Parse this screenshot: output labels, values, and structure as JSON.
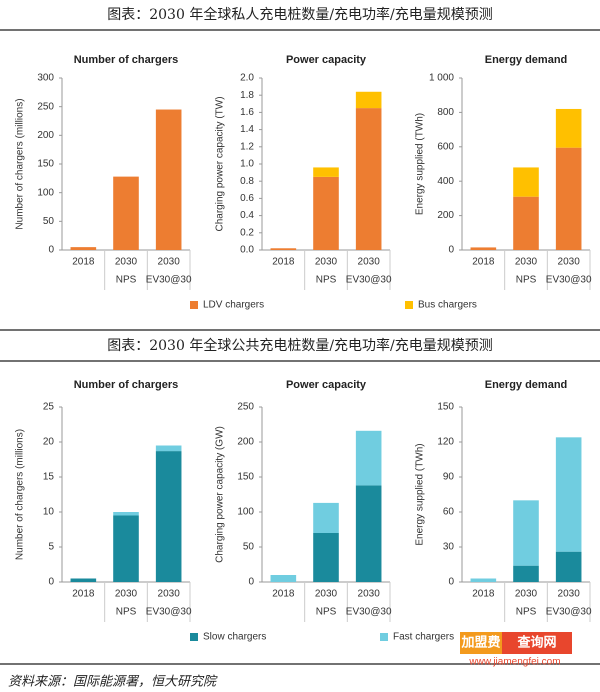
{
  "panels": [
    {
      "title": "图表：2030 年全球私人充电桩数量/充电功率/充电量规模预测",
      "legend": [
        {
          "name": "LDV chargers",
          "color": "#ed7d31"
        },
        {
          "name": "Bus chargers",
          "color": "#ffc000"
        }
      ]
    },
    {
      "title": "图表：2030 年全球公共充电桩数量/充电功率/充电量规模预测",
      "legend": [
        {
          "name": "Slow chargers",
          "color": "#1a8a9c"
        },
        {
          "name": "Fast chargers",
          "color": "#70cde0"
        }
      ]
    }
  ],
  "chart_data": [
    {
      "type": "bar",
      "stacked": true,
      "title": "Number of chargers",
      "y_label": "Number of chargers (millions)",
      "categories": [
        [
          "2018"
        ],
        [
          "2030",
          "NPS"
        ],
        [
          "2030",
          "EV30@30"
        ]
      ],
      "series": [
        {
          "values": [
            5,
            128,
            245
          ]
        },
        {
          "values": [
            0,
            0,
            0
          ]
        }
      ],
      "ylim": [
        0,
        300
      ],
      "yticks": [
        0,
        50,
        100,
        150,
        200,
        250,
        300
      ]
    },
    {
      "type": "bar",
      "stacked": true,
      "title": "Power capacity",
      "y_label": "Charging power capacity (TW)",
      "categories": [
        [
          "2018"
        ],
        [
          "2030",
          "NPS"
        ],
        [
          "2030",
          "EV30@30"
        ]
      ],
      "series": [
        {
          "values": [
            0.02,
            0.85,
            1.65
          ]
        },
        {
          "values": [
            0,
            0.11,
            0.19
          ]
        }
      ],
      "ylim": [
        0,
        2
      ],
      "yticks": [
        {
          "value": 0,
          "label": "0.0"
        },
        0.2,
        0.4,
        0.6,
        0.8,
        {
          "value": 1,
          "label": "1.0"
        },
        1.2,
        1.4,
        1.6,
        1.8,
        {
          "value": 2,
          "label": "2.0"
        }
      ]
    },
    {
      "type": "bar",
      "stacked": true,
      "title": "Energy demand",
      "y_label": "Energy supplied (TWh)",
      "categories": [
        [
          "2018"
        ],
        [
          "2030",
          "NPS"
        ],
        [
          "2030",
          "EV30@30"
        ]
      ],
      "series": [
        {
          "values": [
            15,
            310,
            595
          ]
        },
        {
          "values": [
            0,
            170,
            225
          ]
        }
      ],
      "ylim": [
        0,
        1000
      ],
      "yticks": [
        0,
        200,
        400,
        600,
        800,
        {
          "value": 1000,
          "label": "1 000"
        }
      ]
    },
    {
      "type": "bar",
      "stacked": true,
      "title": "Number of chargers",
      "y_label": "Number of chargers (millions)",
      "categories": [
        [
          "2018"
        ],
        [
          "2030",
          "NPS"
        ],
        [
          "2030",
          "EV30@30"
        ]
      ],
      "series": [
        {
          "values": [
            0.5,
            9.5,
            18.7
          ]
        },
        {
          "values": [
            0,
            0.5,
            0.8
          ]
        }
      ],
      "ylim": [
        0,
        25
      ],
      "yticks": [
        0,
        5,
        10,
        15,
        20,
        25
      ]
    },
    {
      "type": "bar",
      "stacked": true,
      "title": "Power capacity",
      "y_label": "Charging power capacity (GW)",
      "categories": [
        [
          "2018"
        ],
        [
          "2030",
          "NPS"
        ],
        [
          "2030",
          "EV30@30"
        ]
      ],
      "series": [
        {
          "values": [
            0,
            70,
            138
          ]
        },
        {
          "values": [
            10,
            43,
            78
          ]
        }
      ],
      "ylim": [
        0,
        250
      ],
      "yticks": [
        0,
        50,
        100,
        150,
        200,
        250
      ]
    },
    {
      "type": "bar",
      "stacked": true,
      "title": "Energy demand",
      "y_label": "Energy supplied (TWh)",
      "categories": [
        [
          "2018"
        ],
        [
          "2030",
          "NPS"
        ],
        [
          "2030",
          "EV30@30"
        ]
      ],
      "series": [
        {
          "values": [
            0,
            14,
            26
          ]
        },
        {
          "values": [
            3,
            56,
            98
          ]
        }
      ],
      "ylim": [
        0,
        150
      ],
      "yticks": [
        0,
        30,
        60,
        90,
        120,
        150
      ]
    }
  ],
  "source": "资料来源：国际能源署，恒大研究院",
  "watermark": [
    "加盟费",
    "查询网",
    "www.jiamengfei.com"
  ]
}
